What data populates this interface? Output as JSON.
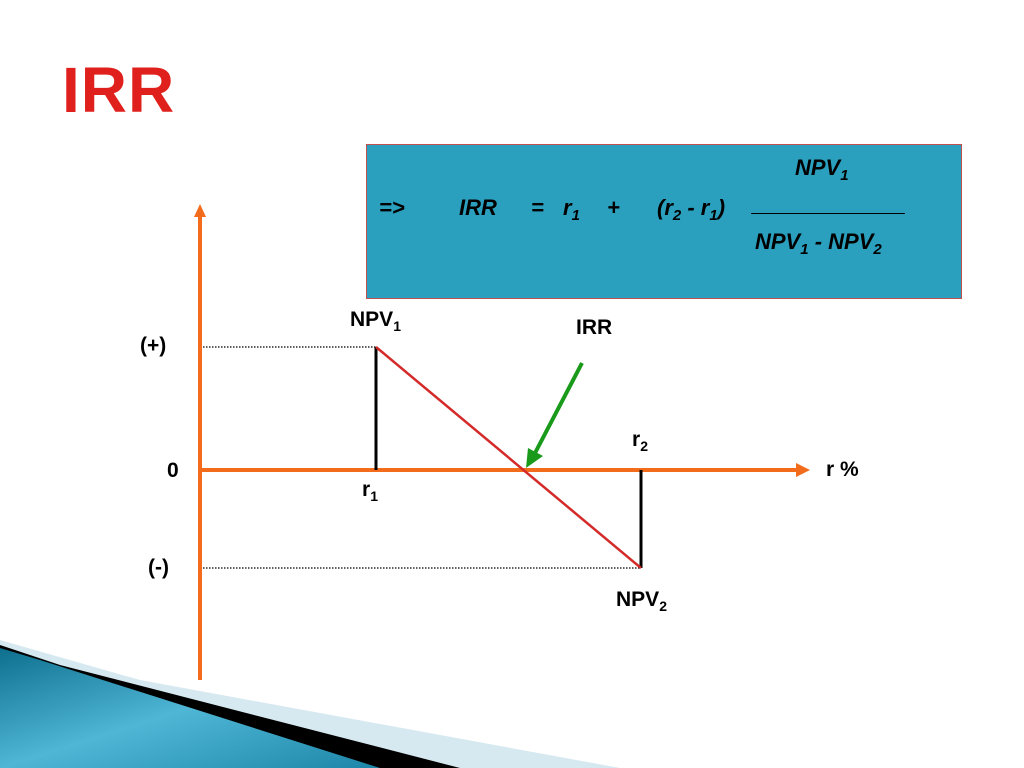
{
  "slide": {
    "title": "IRR"
  },
  "formula": {
    "arrow": "=>",
    "lhs": "IRR",
    "equals": "=",
    "r1": "r",
    "r1_sub": "1",
    "plus": "+",
    "diff": "(r",
    "diff_sub2": "2",
    "diff_minus": "- r",
    "diff_sub1": "1",
    "diff_close": ")",
    "numerator": "NPV",
    "numerator_sub": "1",
    "denominator_a": "NPV",
    "denominator_a_sub": "1",
    "denominator_minus": "-",
    "denominator_b": "NPV",
    "denominator_b_sub": "2"
  },
  "diagram": {
    "y_labels": {
      "positive": "(+)",
      "zero": "0",
      "negative": "(-)"
    },
    "x_axis_label": "r %",
    "npv1": {
      "text": "NPV",
      "sub": "1"
    },
    "npv2": {
      "text": "NPV",
      "sub": "2"
    },
    "r1": {
      "text": "r",
      "sub": "1"
    },
    "r2": {
      "text": "r",
      "sub": "2"
    },
    "irr_label": "IRR",
    "colors": {
      "axis": "#f26c1c",
      "line": "#d42a2a",
      "pointer": "#1a9a1a",
      "formula_bg": "#2aa0be",
      "title": "#e0201c"
    }
  }
}
